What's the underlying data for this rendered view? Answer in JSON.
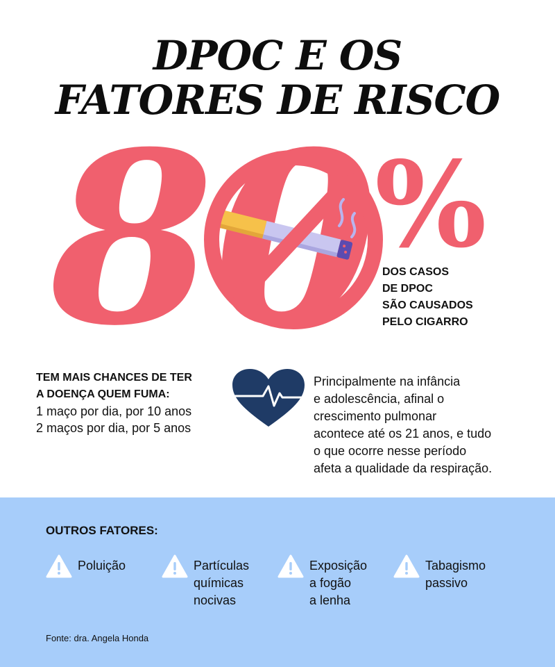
{
  "title": {
    "line1": "DPOC E OS",
    "line2": "FATORES DE RISCO"
  },
  "hero": {
    "number": "80",
    "percent_sign": "%",
    "caption": [
      "DOS CASOS",
      "DE DPOC",
      "SÃO CAUSADOS",
      "PELO CIGARRO"
    ],
    "icon": "no-smoking-icon",
    "colors": {
      "accent": "#f0606e",
      "cigarette_body": "#c9c6f0",
      "filter": "#f6c14a",
      "tip": "#5b4bb0"
    }
  },
  "chances": {
    "heading": [
      "TEM MAIS CHANCES DE TER",
      "A DOENÇA QUEM FUMA:"
    ],
    "lines": [
      "1 maço por dia, por 10 anos",
      "2 maços por dia, por 5 anos"
    ]
  },
  "heart": {
    "icon": "heart-pulse-icon",
    "color": "#1f3b66"
  },
  "childhood": {
    "lines": [
      "Principalmente na infância",
      "e adolescência, afinal o",
      "crescimento pulmonar",
      "acontece até os 21 anos, e tudo",
      "o que ocorre nesse período",
      "afeta a qualidade da respiração."
    ]
  },
  "other_factors": {
    "heading": "OUTROS FATORES:",
    "background": "#a7cdfa",
    "items": [
      {
        "icon": "warning-icon",
        "lines": [
          "Poluição"
        ]
      },
      {
        "icon": "warning-icon",
        "lines": [
          "Partículas",
          "químicas",
          "nocivas"
        ]
      },
      {
        "icon": "warning-icon",
        "lines": [
          "Exposição",
          "a fogão",
          "a lenha"
        ]
      },
      {
        "icon": "warning-icon",
        "lines": [
          "Tabagismo",
          "passivo"
        ]
      }
    ]
  },
  "source": "Fonte: dra. Angela Honda"
}
